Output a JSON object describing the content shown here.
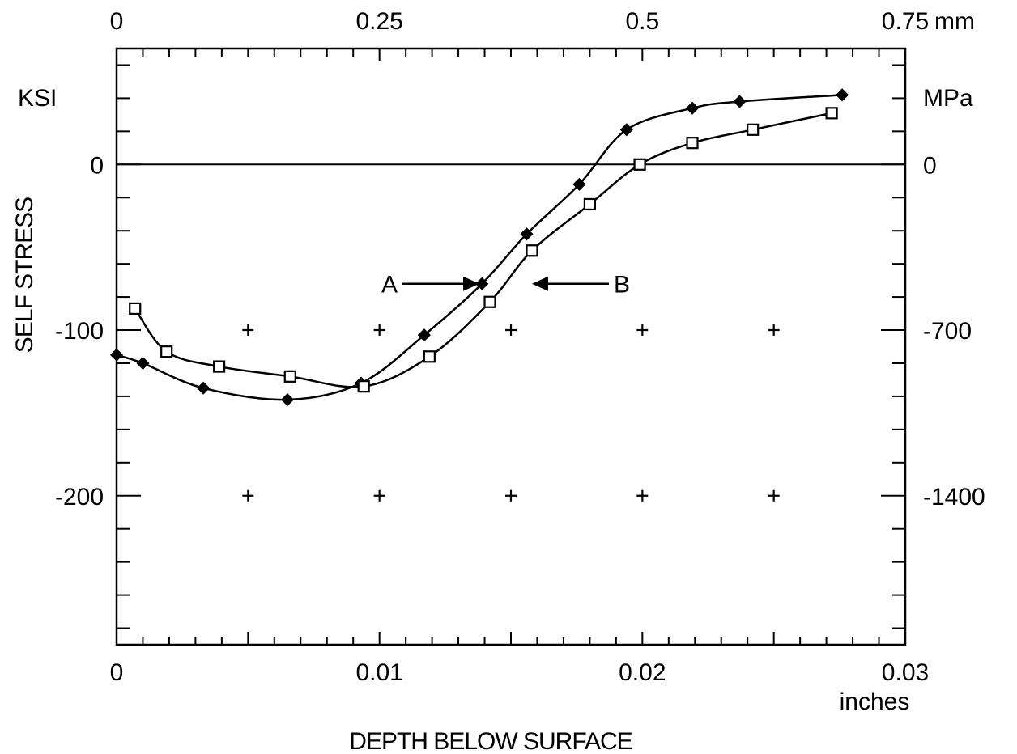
{
  "chart_data": {
    "type": "line",
    "xlabel": "DEPTH BELOW SURFACE",
    "ylabel": "SELF STRESS",
    "x_unit": "inches",
    "x_top_unit": "mm",
    "y_unit_left": "KSI",
    "y_unit_right": "MPa",
    "xlim": [
      0,
      0.03
    ],
    "ylim": [
      -290,
      70
    ],
    "x_ticks_bottom": [
      {
        "value": 0,
        "label": "0"
      },
      {
        "value": 0.01,
        "label": "0.01"
      },
      {
        "value": 0.02,
        "label": "0.02"
      },
      {
        "value": 0.03,
        "label": "0.03"
      }
    ],
    "x_ticks_top_mm": [
      {
        "value": 0,
        "label": "0"
      },
      {
        "value": 0.25,
        "label": "0.25"
      },
      {
        "value": 0.5,
        "label": "0.5"
      },
      {
        "value": 0.75,
        "label": "0.75"
      }
    ],
    "y_ticks_left": [
      {
        "value": 0,
        "label": "0"
      },
      {
        "value": -100,
        "label": "-100"
      },
      {
        "value": -200,
        "label": "-200"
      }
    ],
    "y_ticks_right": [
      {
        "value": 0,
        "label": "0"
      },
      {
        "value": -100,
        "label": "-700"
      },
      {
        "value": -200,
        "label": "-1400"
      }
    ],
    "zero_line": true,
    "grid_marks": "crosses",
    "series": [
      {
        "marker": "diamond",
        "x": [
          0.0,
          0.001,
          0.0033,
          0.0065,
          0.0093,
          0.0117,
          0.0139,
          0.0156,
          0.0176,
          0.0194,
          0.0219,
          0.0237,
          0.0276
        ],
        "y": [
          -115,
          -120,
          -135,
          -142,
          -132,
          -103,
          -72,
          -42,
          -12,
          21,
          34,
          38,
          42
        ]
      },
      {
        "marker": "square",
        "x": [
          0.0007,
          0.0019,
          0.0039,
          0.0066,
          0.0094,
          0.0119,
          0.0142,
          0.0158,
          0.018,
          0.0199,
          0.0219,
          0.0242,
          0.0272
        ],
        "y": [
          -87,
          -113,
          -122,
          -128,
          -134,
          -116,
          -83,
          -52,
          -24,
          0,
          13,
          21,
          31
        ]
      }
    ],
    "annotations": [
      {
        "label": "A",
        "x": 0.0138,
        "y": -72,
        "direction": "right"
      },
      {
        "label": "B",
        "x": 0.0158,
        "y": -72,
        "direction": "left"
      }
    ]
  }
}
